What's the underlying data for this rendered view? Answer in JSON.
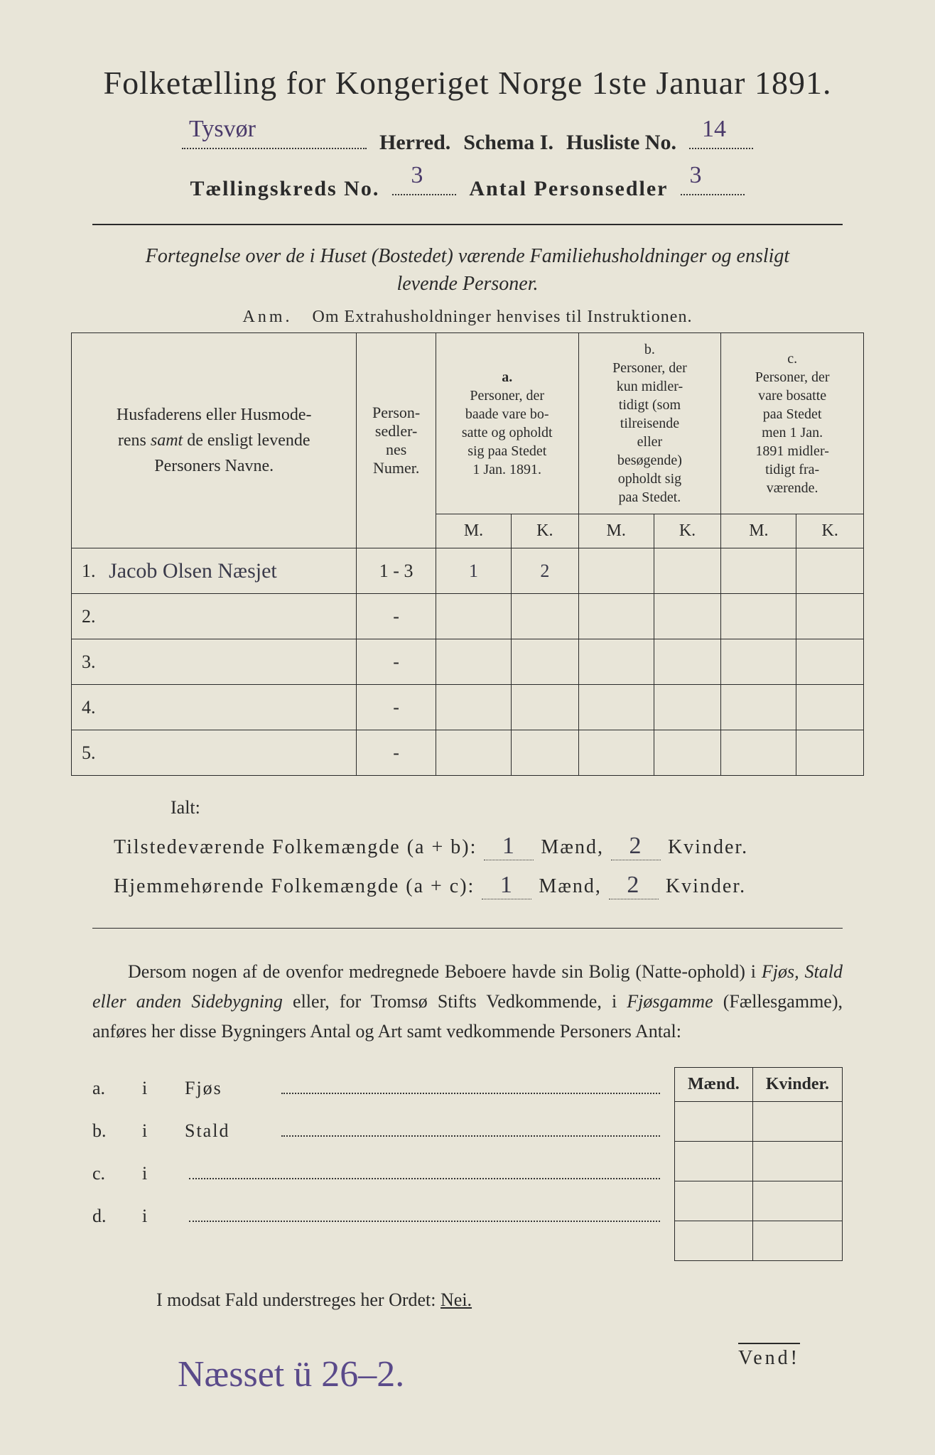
{
  "title": "Folketælling for Kongeriget Norge 1ste Januar 1891.",
  "herred_name": "Tysvør",
  "herred_label": "Herred.",
  "schema_label": "Schema I.",
  "husliste_label": "Husliste No.",
  "husliste_no": "14",
  "kreds_label": "Tællingskreds No.",
  "kreds_no": "3",
  "antal_label": "Antal Personsedler",
  "antal_no": "3",
  "subtitle_line1": "Fortegnelse over de i Huset (Bostedet) værende Familiehusholdninger og ensligt",
  "subtitle_line2": "levende Personer.",
  "anm_prefix": "Anm.",
  "anm_text": "Om Extrahusholdninger henvises til Instruktionen.",
  "table": {
    "col1_l1": "Husfaderens eller Husmode-",
    "col1_l2": "rens ",
    "col1_samt": "samt",
    "col1_l2b": " de ensligt levende",
    "col1_l3": "Personers Navne.",
    "col2_l1": "Person-",
    "col2_l2": "sedler-",
    "col2_l3": "nes",
    "col2_l4": "Numer.",
    "a_label": "a.",
    "a_l1": "Personer, der",
    "a_l2": "baade vare bo-",
    "a_l3": "satte og opholdt",
    "a_l4": "sig paa Stedet",
    "a_l5": "1 Jan. 1891.",
    "b_label": "b.",
    "b_l1": "Personer, der",
    "b_l2": "kun midler-",
    "b_l3": "tidigt (som",
    "b_l4": "tilreisende",
    "b_l5": "eller",
    "b_l6": "besøgende)",
    "b_l7": "opholdt sig",
    "b_l8": "paa Stedet.",
    "c_label": "c.",
    "c_l1": "Personer, der",
    "c_l2": "vare bosatte",
    "c_l3": "paa Stedet",
    "c_l4": "men 1 Jan.",
    "c_l5": "1891 midler-",
    "c_l6": "tidigt fra-",
    "c_l7": "værende.",
    "M": "M.",
    "K": "K.",
    "rows": [
      {
        "num": "1.",
        "name": "Jacob Olsen Næsjet",
        "sedler": "1 - 3",
        "aM": "1",
        "aK": "2",
        "bM": "",
        "bK": "",
        "cM": "",
        "cK": ""
      },
      {
        "num": "2.",
        "name": "",
        "sedler": "-",
        "aM": "",
        "aK": "",
        "bM": "",
        "bK": "",
        "cM": "",
        "cK": ""
      },
      {
        "num": "3.",
        "name": "",
        "sedler": "-",
        "aM": "",
        "aK": "",
        "bM": "",
        "bK": "",
        "cM": "",
        "cK": ""
      },
      {
        "num": "4.",
        "name": "",
        "sedler": "-",
        "aM": "",
        "aK": "",
        "bM": "",
        "bK": "",
        "cM": "",
        "cK": ""
      },
      {
        "num": "5.",
        "name": "",
        "sedler": "-",
        "aM": "",
        "aK": "",
        "bM": "",
        "bK": "",
        "cM": "",
        "cK": ""
      }
    ]
  },
  "ialt": "Ialt:",
  "sum1_label": "Tilstedeværende Folkemængde (a + b):",
  "sum1_m": "1",
  "sum1_k": "2",
  "sum2_label": "Hjemmehørende Folkemængde (a + c):",
  "sum2_m": "1",
  "sum2_k": "2",
  "maend": "Mænd,",
  "kvinder": "Kvinder.",
  "para_text1": "Dersom nogen af de ovenfor medregnede Beboere havde sin Bolig (Natte-ophold) i ",
  "para_it1": "Fjøs, Stald eller anden Sidebygning",
  "para_text2": " eller, for Tromsø Stifts Vedkommende, i ",
  "para_it2": "Fjøsgamme",
  "para_text3": " (Fællesgamme), anføres her disse Bygningers Antal og Art samt vedkommende Personers Antal:",
  "list": {
    "a": "a.",
    "b": "b.",
    "c": "c.",
    "d": "d.",
    "i": "i",
    "fjos": "Fjøs",
    "stald": "Stald"
  },
  "small_table": {
    "maend": "Mænd.",
    "kvinder": "Kvinder."
  },
  "nei_line": "I modsat Fald understreges her Ordet: ",
  "nei": "Nei.",
  "bottom_hw": "Næsset ü 26–2.",
  "vend": "Vend!"
}
